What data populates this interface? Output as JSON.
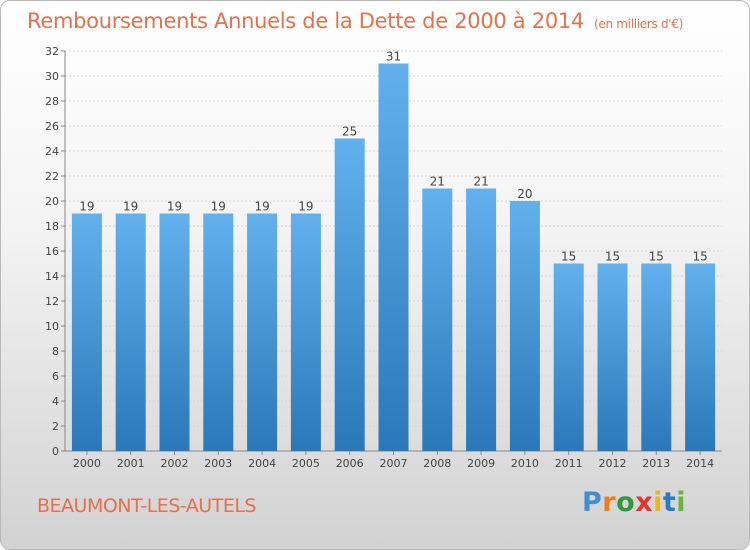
{
  "title": "Remboursements Annuels de la Dette de 2000 à 2014",
  "unit": "(en milliers d'€)",
  "location": "BEAUMONT-LES-AUTELS",
  "logo": {
    "text": "Proxiti",
    "colors": [
      "#3f8fd2",
      "#f07d1e",
      "#2e9a3c",
      "#e3342f",
      "#f3b31a",
      "#2a7ac6",
      "#6db33f"
    ]
  },
  "colors": {
    "bar_light": "#62b0ec",
    "bar_dark": "#2a78b8",
    "title": "#e3714d"
  },
  "chart_data": {
    "type": "bar",
    "categories": [
      "2000",
      "2001",
      "2002",
      "2003",
      "2004",
      "2005",
      "2006",
      "2007",
      "2008",
      "2009",
      "2010",
      "2011",
      "2012",
      "2013",
      "2014"
    ],
    "values": [
      19,
      19,
      19,
      19,
      19,
      19,
      25,
      31,
      21,
      21,
      20,
      15,
      15,
      15,
      15
    ],
    "ylim": [
      0,
      32
    ],
    "yticks": [
      0,
      2,
      4,
      6,
      8,
      10,
      12,
      14,
      16,
      18,
      20,
      22,
      24,
      26,
      28,
      30,
      32
    ],
    "grid": true,
    "xlabel": "",
    "ylabel": ""
  }
}
